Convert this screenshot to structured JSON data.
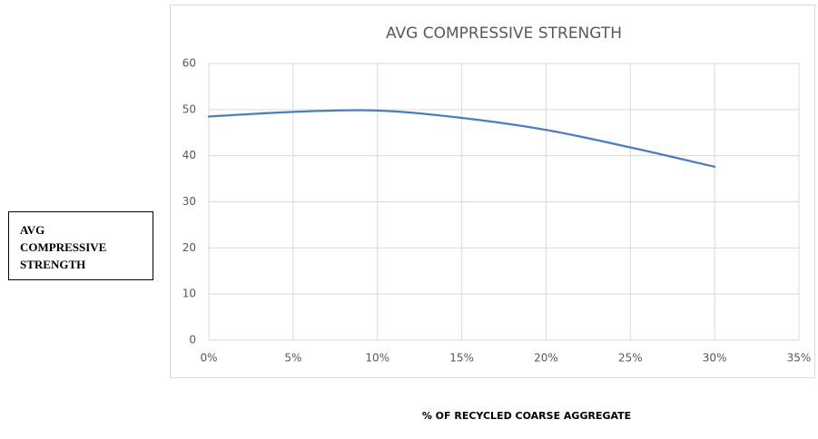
{
  "chart_data": {
    "type": "line",
    "title": "AVG COMPRESSIVE STRENGTH",
    "y_axis_label": "AVG COMPRESSIVE STRENGTH",
    "x_axis_label": "% OF RECYCLED COARSE AGGREGATE",
    "x": [
      0,
      5,
      10,
      15,
      20,
      25,
      30
    ],
    "series": [
      {
        "name": "AVG COMPRESSIVE STRENGTH",
        "color": "#4a7ebb",
        "values": [
          48.5,
          49.5,
          49.8,
          48.2,
          45.6,
          41.8,
          37.6
        ]
      }
    ],
    "xlim": [
      0,
      35
    ],
    "xticks": [
      {
        "value": 0,
        "label": "0%"
      },
      {
        "value": 5,
        "label": "5%"
      },
      {
        "value": 10,
        "label": "10%"
      },
      {
        "value": 15,
        "label": "15%"
      },
      {
        "value": 20,
        "label": "20%"
      },
      {
        "value": 25,
        "label": "25%"
      },
      {
        "value": 30,
        "label": "30%"
      },
      {
        "value": 35,
        "label": "35%"
      }
    ],
    "ylim": [
      0,
      60
    ],
    "yticks": [
      0,
      10,
      20,
      30,
      40,
      50,
      60
    ],
    "grid": true,
    "smooth": true
  }
}
